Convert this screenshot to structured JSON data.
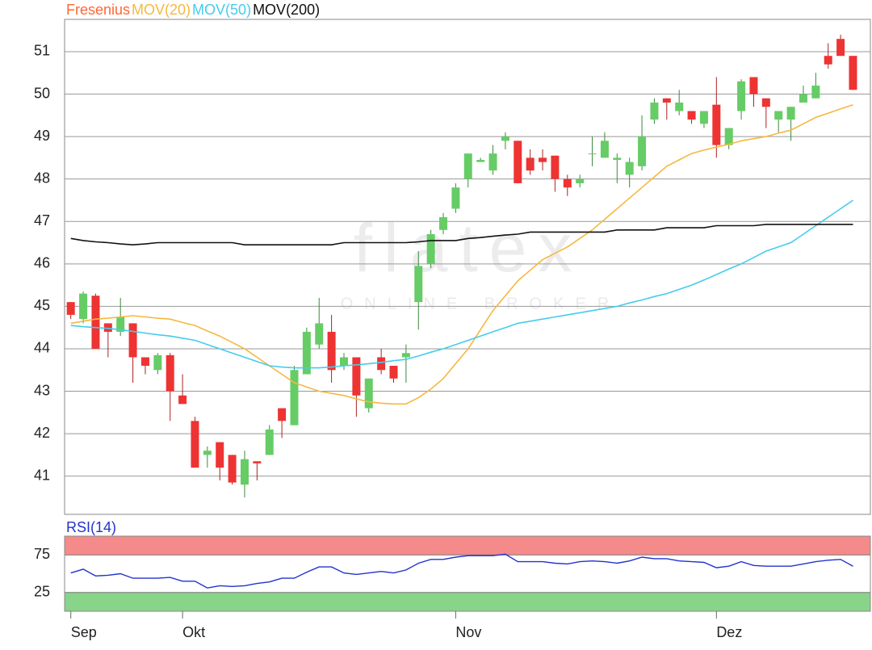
{
  "watermark": {
    "logo": "flatex",
    "tagline": "ONLINE BROKER"
  },
  "chart_data": [
    {
      "type": "candlestick",
      "up_color": "#66cc66",
      "down_color": "#ee3333",
      "grid": true,
      "xlim": [
        -0.5,
        64.4
      ],
      "ylim": [
        40.1,
        51.76
      ],
      "yticks": [
        41,
        42,
        43,
        44,
        45,
        46,
        47,
        48,
        49,
        50,
        51
      ],
      "series": [
        {
          "name": "Fresenius",
          "color": "#ff6633",
          "open": [
            45.1,
            44.7,
            45.25,
            44.6,
            44.4,
            44.6,
            43.8,
            43.5,
            43.85,
            42.9,
            42.3,
            41.5,
            41.8,
            41.5,
            40.8,
            41.35,
            41.5,
            42.6,
            42.2,
            43.4,
            44.1,
            44.4,
            43.6,
            43.8,
            42.6,
            43.8,
            43.6,
            43.8,
            45.1,
            46.0,
            46.8,
            47.3,
            48.0,
            48.4,
            48.2,
            48.9,
            48.9,
            48.5,
            48.5,
            48.55,
            48.0,
            47.9,
            48.6,
            48.5,
            48.45,
            48.1,
            48.3,
            49.4,
            49.9,
            49.6,
            49.6,
            49.3,
            49.75,
            48.8,
            49.6,
            50.4,
            49.9,
            49.4,
            49.4,
            49.8,
            49.9,
            50.9,
            51.3,
            50.9
          ],
          "high": [
            45.1,
            45.35,
            45.3,
            44.6,
            45.2,
            44.6,
            43.8,
            43.9,
            43.9,
            43.4,
            42.4,
            41.7,
            41.8,
            41.5,
            41.6,
            41.35,
            42.2,
            42.6,
            43.6,
            44.5,
            45.2,
            44.8,
            43.9,
            43.8,
            43.3,
            44.0,
            43.6,
            44.1,
            46.3,
            46.8,
            47.2,
            47.9,
            48.6,
            48.5,
            48.8,
            49.1,
            48.9,
            48.7,
            48.7,
            48.55,
            48.1,
            48.1,
            49.0,
            49.1,
            48.6,
            48.5,
            49.5,
            49.9,
            49.9,
            50.1,
            49.6,
            49.6,
            50.4,
            49.2,
            50.35,
            50.4,
            49.9,
            49.6,
            49.7,
            50.2,
            50.5,
            51.2,
            51.4,
            50.9
          ],
          "low": [
            44.7,
            44.6,
            44.0,
            43.8,
            44.3,
            43.2,
            43.4,
            43.4,
            42.3,
            42.7,
            41.2,
            41.2,
            40.9,
            40.8,
            40.5,
            40.9,
            41.5,
            41.9,
            42.2,
            43.4,
            44.0,
            43.2,
            43.5,
            42.4,
            42.5,
            43.4,
            43.2,
            43.2,
            44.45,
            45.9,
            46.7,
            47.2,
            47.8,
            48.4,
            48.1,
            48.7,
            47.9,
            48.1,
            48.2,
            47.7,
            47.6,
            47.8,
            48.3,
            48.5,
            47.9,
            47.8,
            48.2,
            49.3,
            49.4,
            49.5,
            49.3,
            49.2,
            48.5,
            48.7,
            49.4,
            49.7,
            49.2,
            49.1,
            48.9,
            49.8,
            49.9,
            50.6,
            50.9,
            50.1
          ],
          "close": [
            44.8,
            45.3,
            44.0,
            44.4,
            44.75,
            43.8,
            43.6,
            43.85,
            43.0,
            42.7,
            41.2,
            41.6,
            41.2,
            40.85,
            41.4,
            41.3,
            42.1,
            42.3,
            43.5,
            44.4,
            44.6,
            43.5,
            43.8,
            42.9,
            43.3,
            43.5,
            43.3,
            43.9,
            45.95,
            46.7,
            47.1,
            47.8,
            48.6,
            48.45,
            48.6,
            49.0,
            47.9,
            48.2,
            48.4,
            48.0,
            47.8,
            48.0,
            48.6,
            48.9,
            48.5,
            48.4,
            49.0,
            49.8,
            49.8,
            49.8,
            49.4,
            49.6,
            48.8,
            49.2,
            50.3,
            50.0,
            49.7,
            49.6,
            49.7,
            50.0,
            50.2,
            50.7,
            50.9,
            50.1
          ]
        },
        {
          "name": "MOV(20)",
          "color": "#f5b840",
          "values": [
            44.6,
            44.65,
            44.7,
            44.72,
            44.75,
            44.78,
            44.75,
            44.72,
            44.7,
            44.62,
            44.55,
            44.42,
            44.3,
            44.15,
            44.0,
            43.8,
            43.6,
            43.4,
            43.2,
            43.1,
            43.0,
            42.95,
            42.9,
            42.82,
            42.75,
            42.72,
            42.7,
            42.7,
            42.85,
            43.05,
            43.3,
            43.65,
            44.0,
            44.45,
            44.9,
            45.25,
            45.6,
            45.85,
            46.1,
            46.25,
            46.4,
            46.6,
            46.8,
            47.05,
            47.3,
            47.55,
            47.8,
            48.05,
            48.3,
            48.45,
            48.6,
            48.68,
            48.75,
            48.82,
            48.9,
            48.95,
            49.0,
            49.08,
            49.15,
            49.3,
            49.45,
            49.55,
            49.65,
            49.75
          ]
        },
        {
          "name": "MOV(50)",
          "color": "#44ccee",
          "values": [
            44.55,
            44.52,
            44.5,
            44.48,
            44.45,
            44.41,
            44.37,
            44.33,
            44.3,
            44.25,
            44.2,
            44.1,
            44.0,
            43.9,
            43.8,
            43.7,
            43.6,
            43.57,
            43.55,
            43.55,
            43.55,
            43.57,
            43.6,
            43.62,
            43.65,
            43.68,
            43.72,
            43.75,
            43.83,
            43.92,
            44.0,
            44.1,
            44.2,
            44.3,
            44.4,
            44.5,
            44.6,
            44.65,
            44.7,
            44.75,
            44.8,
            44.85,
            44.9,
            44.95,
            45.0,
            45.08,
            45.15,
            45.23,
            45.3,
            45.4,
            45.5,
            45.62,
            45.75,
            45.88,
            46.0,
            46.15,
            46.3,
            46.4,
            46.5,
            46.7,
            46.9,
            47.1,
            47.3,
            47.5
          ]
        },
        {
          "name": "MOV(200)",
          "color": "#111111",
          "values": [
            46.6,
            46.55,
            46.52,
            46.5,
            46.47,
            46.45,
            46.47,
            46.5,
            46.5,
            46.5,
            46.5,
            46.5,
            46.5,
            46.5,
            46.45,
            46.45,
            46.45,
            46.45,
            46.45,
            46.45,
            46.45,
            46.45,
            46.5,
            46.5,
            46.5,
            46.5,
            46.5,
            46.5,
            46.52,
            46.55,
            46.55,
            46.55,
            46.6,
            46.62,
            46.65,
            46.68,
            46.7,
            46.75,
            46.75,
            46.75,
            46.75,
            46.75,
            46.75,
            46.75,
            46.8,
            46.8,
            46.8,
            46.8,
            46.85,
            46.85,
            46.85,
            46.85,
            46.9,
            46.9,
            46.9,
            46.9,
            46.93,
            46.93,
            46.93,
            46.93,
            46.93,
            46.93,
            46.93,
            46.93
          ]
        }
      ]
    },
    {
      "type": "line",
      "xlim": [
        -0.5,
        64.4
      ],
      "ylim": [
        0,
        100
      ],
      "yticks": [
        25,
        75
      ],
      "overbought_color": "#f58a8a",
      "oversold_color": "#88d488",
      "xticks": [
        {
          "value": 0,
          "label": "Sep"
        },
        {
          "value": 9,
          "label": "Okt"
        },
        {
          "value": 31,
          "label": "Nov"
        },
        {
          "value": 52,
          "label": "Dez"
        }
      ],
      "series": [
        {
          "name": "RSI(14)",
          "color": "#2233cc",
          "values": [
            51,
            56,
            47,
            48,
            50,
            44,
            44,
            44,
            45,
            40,
            40,
            31,
            34,
            33,
            34,
            37,
            39,
            44,
            44,
            52,
            59,
            59,
            51,
            49,
            51,
            53,
            51,
            55,
            64,
            69,
            69,
            72,
            74,
            74,
            74,
            76,
            66,
            66,
            66,
            64,
            63,
            66,
            67,
            66,
            64,
            67,
            72,
            70,
            70,
            67,
            66,
            65,
            58,
            60,
            66,
            61,
            60,
            60,
            60,
            63,
            66,
            68,
            69,
            60
          ]
        }
      ]
    }
  ]
}
